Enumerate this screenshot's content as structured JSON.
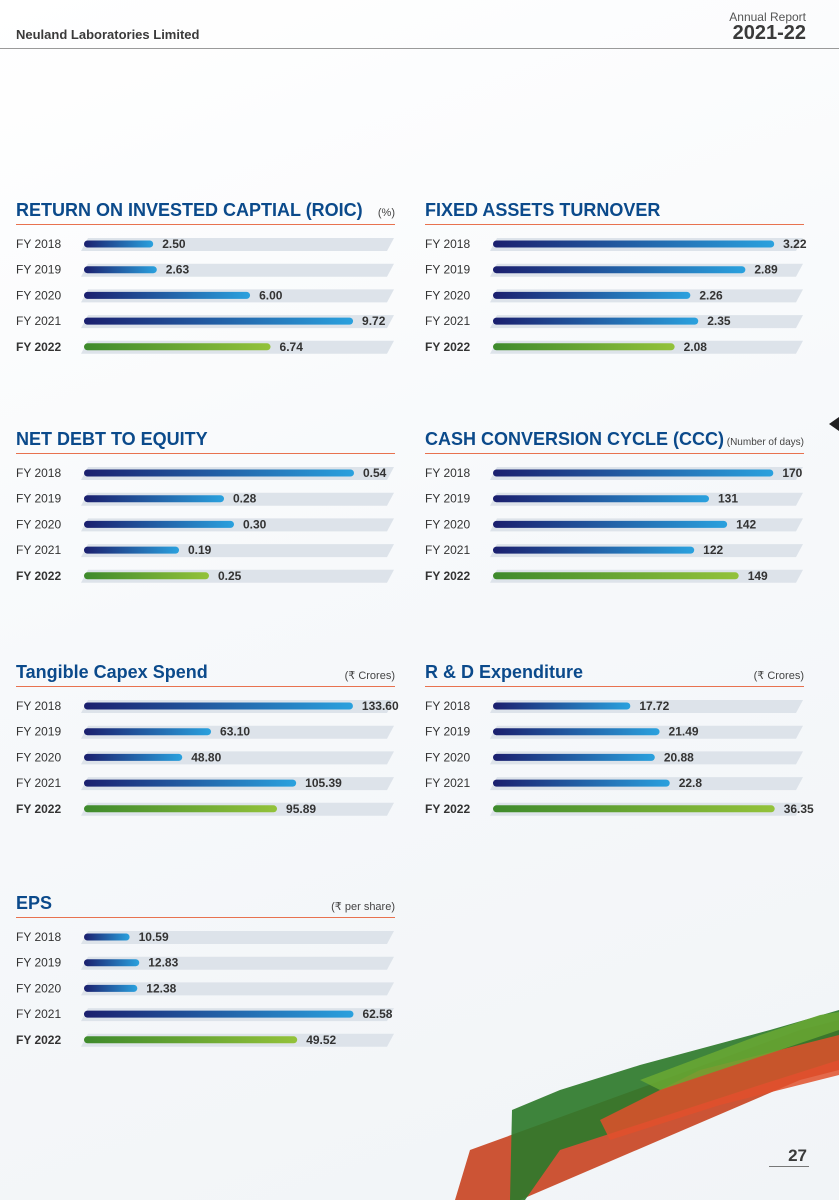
{
  "header": {
    "company": "Neuland Laboratories Limited",
    "report_label": "Annual Report",
    "report_year": "2021-22"
  },
  "page_number": "27",
  "colors": {
    "title": "#0b4a8b",
    "rule": "#e8724f",
    "track": "#dde3ea",
    "bar_dark": "#1b1f6e",
    "bar_light": "#2aa1de",
    "bar_green_dark": "#3e8a2c",
    "bar_green_light": "#93c23a"
  },
  "chart_data": [
    {
      "type": "bar",
      "orientation": "horizontal",
      "title": "RETURN ON INVESTED CAPTIAL (ROIC)",
      "unit": "(%)",
      "categories": [
        "FY 2018",
        "FY 2019",
        "FY 2020",
        "FY 2021",
        "FY 2022"
      ],
      "values": [
        2.5,
        2.63,
        6.0,
        9.72,
        6.74
      ],
      "labels": [
        "2.50",
        "2.63",
        "6.00",
        "9.72",
        "6.74"
      ],
      "highlight_index": 4,
      "xlim": [
        0,
        11.2
      ]
    },
    {
      "type": "bar",
      "orientation": "horizontal",
      "title": "FIXED ASSETS TURNOVER",
      "unit": "",
      "categories": [
        "FY 2018",
        "FY 2019",
        "FY 2020",
        "FY 2021",
        "FY 2022"
      ],
      "values": [
        3.22,
        2.89,
        2.26,
        2.35,
        2.08
      ],
      "labels": [
        "3.22",
        "2.89",
        "2.26",
        "2.35",
        "2.08"
      ],
      "highlight_index": 4,
      "xlim": [
        0,
        3.55
      ]
    },
    {
      "type": "bar",
      "orientation": "horizontal",
      "title": "NET DEBT TO EQUITY",
      "unit": "",
      "categories": [
        "FY 2018",
        "FY 2019",
        "FY 2020",
        "FY 2021",
        "FY 2022"
      ],
      "values": [
        0.54,
        0.28,
        0.3,
        0.19,
        0.25
      ],
      "labels": [
        "0.54",
        "0.28",
        "0.30",
        "0.19",
        "0.25"
      ],
      "highlight_index": 4,
      "xlim": [
        0,
        0.62
      ]
    },
    {
      "type": "bar",
      "orientation": "horizontal",
      "title": "CASH CONVERSION CYCLE (CCC)",
      "unit": "(Number of days)",
      "categories": [
        "FY 2018",
        "FY 2019",
        "FY 2020",
        "FY 2021",
        "FY 2022"
      ],
      "values": [
        170,
        131,
        142,
        122,
        149
      ],
      "labels": [
        "170",
        "131",
        "142",
        "122",
        "149"
      ],
      "highlight_index": 4,
      "xlim": [
        0,
        188
      ]
    },
    {
      "type": "bar",
      "orientation": "horizontal",
      "title": "Tangible Capex Spend",
      "unit": "(₹ Crores)",
      "categories": [
        "FY 2018",
        "FY 2019",
        "FY 2020",
        "FY 2021",
        "FY 2022"
      ],
      "values": [
        133.6,
        63.1,
        48.8,
        105.39,
        95.89
      ],
      "labels": [
        "133.60",
        "63.10",
        "48.80",
        "105.39",
        "95.89"
      ],
      "highlight_index": 4,
      "xlim": [
        0,
        154
      ]
    },
    {
      "type": "bar",
      "orientation": "horizontal",
      "title": "R & D Expenditure",
      "unit": "(₹ Crores)",
      "categories": [
        "FY 2018",
        "FY 2019",
        "FY 2020",
        "FY 2021",
        "FY 2022"
      ],
      "values": [
        17.72,
        21.49,
        20.88,
        22.8,
        36.35
      ],
      "labels": [
        "17.72",
        "21.49",
        "20.88",
        "22.8",
        "36.35"
      ],
      "highlight_index": 4,
      "xlim": [
        0,
        40
      ]
    },
    {
      "type": "bar",
      "orientation": "horizontal",
      "title": "EPS",
      "unit": "(₹ per share)",
      "categories": [
        "FY 2018",
        "FY 2019",
        "FY 2020",
        "FY 2021",
        "FY 2022"
      ],
      "values": [
        10.59,
        12.83,
        12.38,
        62.58,
        49.52
      ],
      "labels": [
        "10.59",
        "12.83",
        "12.38",
        "62.58",
        "49.52"
      ],
      "highlight_index": 4,
      "xlim": [
        0,
        72
      ]
    }
  ]
}
